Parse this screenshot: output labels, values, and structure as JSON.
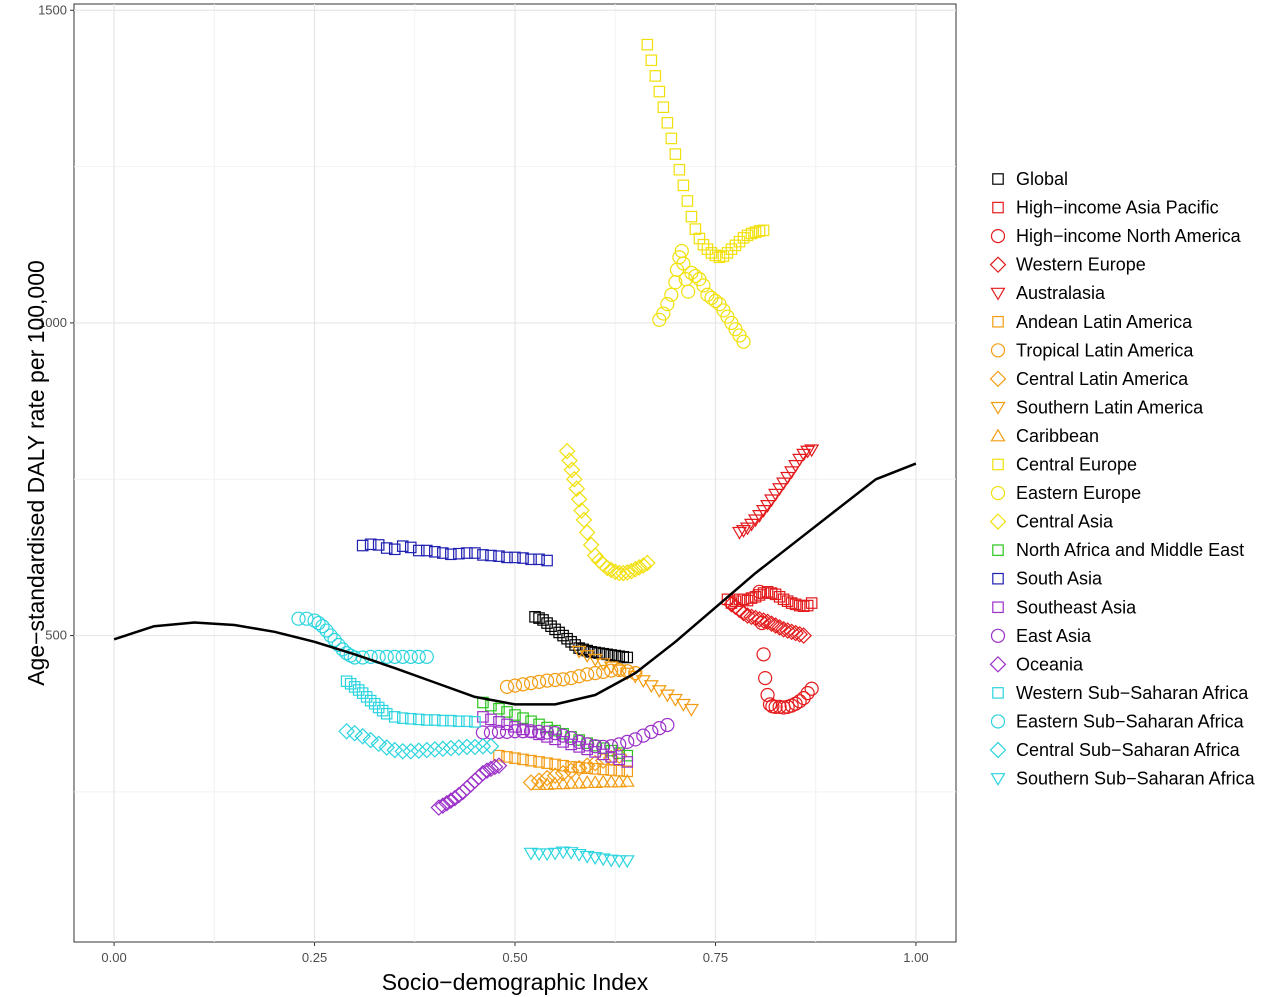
{
  "chart_data": {
    "type": "scatter",
    "title": "",
    "xlabel": "Socio−demographic Index",
    "ylabel": "Age−standardised DALY rate per 100,000",
    "xlim": [
      -0.05,
      1.05
    ],
    "ylim": [
      10,
      1510
    ],
    "x_ticks": [
      0,
      0.25,
      0.5,
      0.75,
      1
    ],
    "x_tick_labels": [
      "0.00",
      "0.25",
      "0.50",
      "0.75",
      "1.00"
    ],
    "y_ticks": [
      500,
      1000,
      1500
    ],
    "y_tick_labels": [
      "500",
      "1000",
      "1500"
    ],
    "y_minor_ticks": [
      250,
      750,
      1250
    ],
    "x_minor_ticks": [
      0.125,
      0.375,
      0.625,
      0.875
    ],
    "grid": true,
    "legend_position": "right",
    "trend_line": {
      "name": "expected",
      "color": "#000000",
      "points": [
        [
          0.0,
          494
        ],
        [
          0.05,
          515
        ],
        [
          0.1,
          521
        ],
        [
          0.15,
          517
        ],
        [
          0.2,
          506
        ],
        [
          0.25,
          490
        ],
        [
          0.3,
          470
        ],
        [
          0.35,
          448
        ],
        [
          0.4,
          425
        ],
        [
          0.45,
          402
        ],
        [
          0.5,
          390
        ],
        [
          0.55,
          390
        ],
        [
          0.6,
          405
        ],
        [
          0.65,
          440
        ],
        [
          0.7,
          490
        ],
        [
          0.75,
          545
        ],
        [
          0.8,
          600
        ],
        [
          0.85,
          650
        ],
        [
          0.9,
          700
        ],
        [
          0.95,
          750
        ],
        [
          1.0,
          775
        ]
      ]
    },
    "series": [
      {
        "name": "Global",
        "shape": "square",
        "color": "#000000",
        "x": [
          0.525,
          0.53,
          0.535,
          0.54,
          0.545,
          0.55,
          0.555,
          0.56,
          0.565,
          0.57,
          0.575,
          0.58,
          0.585,
          0.59,
          0.595,
          0.6,
          0.605,
          0.61,
          0.615,
          0.62,
          0.625,
          0.63,
          0.635,
          0.64
        ],
        "y": [
          530,
          528,
          525,
          520,
          515,
          510,
          505,
          500,
          495,
          490,
          485,
          480,
          478,
          476,
          474,
          473,
          472,
          471,
          470,
          469,
          468,
          467,
          466,
          465
        ]
      },
      {
        "name": "High−income Asia Pacific",
        "shape": "square",
        "color": "#E41A1C",
        "x": [
          0.765,
          0.77,
          0.775,
          0.78,
          0.785,
          0.79,
          0.795,
          0.8,
          0.805,
          0.81,
          0.815,
          0.82,
          0.825,
          0.83,
          0.835,
          0.84,
          0.845,
          0.85,
          0.855,
          0.86,
          0.865,
          0.87
        ],
        "y": [
          558,
          552,
          555,
          558,
          558,
          556,
          560,
          562,
          565,
          568,
          570,
          568,
          566,
          562,
          558,
          555,
          552,
          550,
          548,
          547,
          548,
          552
        ]
      },
      {
        "name": "High−income North America",
        "shape": "circle",
        "color": "#E41A1C",
        "x": [
          0.805,
          0.808,
          0.81,
          0.812,
          0.815,
          0.818,
          0.821,
          0.825,
          0.83,
          0.835,
          0.84,
          0.845,
          0.85,
          0.855,
          0.86,
          0.865,
          0.87
        ],
        "y": [
          570,
          520,
          470,
          432,
          405,
          390,
          387,
          386,
          386,
          385,
          386,
          388,
          391,
          395,
          400,
          408,
          415
        ]
      },
      {
        "name": "Western Europe",
        "shape": "diamond",
        "color": "#E41A1C",
        "x": [
          0.77,
          0.775,
          0.78,
          0.785,
          0.79,
          0.795,
          0.8,
          0.805,
          0.81,
          0.815,
          0.82,
          0.825,
          0.83,
          0.835,
          0.84,
          0.845,
          0.85,
          0.855,
          0.86
        ],
        "y": [
          550,
          546,
          541,
          536,
          532,
          530,
          528,
          526,
          524,
          522,
          519,
          516,
          513,
          510,
          508,
          506,
          504,
          502,
          500
        ]
      },
      {
        "name": "Australasia",
        "shape": "triangle-down",
        "color": "#E41A1C",
        "x": [
          0.78,
          0.785,
          0.79,
          0.795,
          0.8,
          0.805,
          0.81,
          0.815,
          0.82,
          0.825,
          0.83,
          0.835,
          0.84,
          0.845,
          0.85,
          0.855,
          0.86,
          0.865,
          0.87
        ],
        "y": [
          665,
          668,
          672,
          678,
          685,
          692,
          700,
          708,
          717,
          726,
          735,
          744,
          753,
          762,
          772,
          782,
          790,
          795,
          797
        ]
      },
      {
        "name": "Andean Latin America",
        "shape": "square",
        "color": "#F39C12",
        "x": [
          0.48,
          0.49,
          0.5,
          0.51,
          0.52,
          0.53,
          0.54,
          0.55,
          0.56,
          0.57,
          0.58,
          0.59,
          0.6,
          0.61,
          0.62,
          0.63,
          0.64
        ],
        "y": [
          308,
          306,
          304,
          302,
          300,
          298,
          296,
          294,
          292,
          290,
          289,
          288,
          287,
          286,
          285,
          284,
          283
        ]
      },
      {
        "name": "Tropical Latin America",
        "shape": "circle",
        "color": "#F39C12",
        "x": [
          0.49,
          0.5,
          0.51,
          0.52,
          0.53,
          0.54,
          0.55,
          0.56,
          0.57,
          0.58,
          0.59,
          0.6,
          0.61,
          0.62,
          0.63,
          0.64,
          0.65
        ],
        "y": [
          418,
          420,
          422,
          424,
          426,
          428,
          429,
          430,
          432,
          435,
          438,
          440,
          442,
          444,
          445,
          443,
          440
        ]
      },
      {
        "name": "Central Latin America",
        "shape": "diamond",
        "color": "#F39C12",
        "x": [
          0.52,
          0.53,
          0.54,
          0.55,
          0.56,
          0.57,
          0.58,
          0.59,
          0.6,
          0.61,
          0.62,
          0.63
        ],
        "y": [
          265,
          268,
          272,
          276,
          280,
          284,
          288,
          292,
          296,
          300,
          304,
          308
        ]
      },
      {
        "name": "Southern Latin America",
        "shape": "triangle-down",
        "color": "#F39C12",
        "x": [
          0.58,
          0.59,
          0.6,
          0.61,
          0.62,
          0.63,
          0.64,
          0.65,
          0.66,
          0.67,
          0.68,
          0.69,
          0.7,
          0.71,
          0.72
        ],
        "y": [
          475,
          468,
          462,
          455,
          450,
          445,
          440,
          435,
          428,
          420,
          412,
          405,
          398,
          390,
          382
        ]
      },
      {
        "name": "Caribbean",
        "shape": "triangle-up",
        "color": "#F39C12",
        "x": [
          0.53,
          0.54,
          0.55,
          0.56,
          0.57,
          0.58,
          0.59,
          0.6,
          0.61,
          0.62,
          0.63,
          0.64
        ],
        "y": [
          262,
          262,
          263,
          263,
          264,
          264,
          265,
          265,
          266,
          266,
          266,
          267
        ]
      },
      {
        "name": "Central Europe",
        "shape": "square",
        "color": "#F1E00A",
        "x": [
          0.665,
          0.67,
          0.675,
          0.68,
          0.685,
          0.69,
          0.695,
          0.7,
          0.705,
          0.71,
          0.715,
          0.72,
          0.725,
          0.73,
          0.735,
          0.74,
          0.745,
          0.75,
          0.755,
          0.76,
          0.765,
          0.77,
          0.775,
          0.78,
          0.785,
          0.79,
          0.795,
          0.8,
          0.805,
          0.81
        ],
        "y": [
          1445,
          1420,
          1395,
          1370,
          1345,
          1320,
          1295,
          1270,
          1245,
          1220,
          1195,
          1170,
          1150,
          1135,
          1125,
          1118,
          1112,
          1108,
          1105,
          1107,
          1112,
          1118,
          1124,
          1130,
          1136,
          1140,
          1143,
          1145,
          1147,
          1148
        ]
      },
      {
        "name": "Eastern Europe",
        "shape": "circle",
        "color": "#F1E00A",
        "x": [
          0.68,
          0.685,
          0.69,
          0.695,
          0.7,
          0.702,
          0.705,
          0.708,
          0.71,
          0.713,
          0.716,
          0.72,
          0.725,
          0.73,
          0.735,
          0.74,
          0.745,
          0.75,
          0.755,
          0.76,
          0.765,
          0.77,
          0.775,
          0.78,
          0.785
        ],
        "y": [
          1005,
          1015,
          1030,
          1045,
          1065,
          1085,
          1105,
          1115,
          1095,
          1070,
          1050,
          1080,
          1075,
          1070,
          1060,
          1045,
          1040,
          1035,
          1030,
          1020,
          1010,
          1000,
          990,
          980,
          970
        ]
      },
      {
        "name": "Central Asia",
        "shape": "diamond",
        "color": "#F1E00A",
        "x": [
          0.565,
          0.568,
          0.571,
          0.574,
          0.577,
          0.58,
          0.583,
          0.586,
          0.59,
          0.595,
          0.6,
          0.605,
          0.61,
          0.615,
          0.62,
          0.625,
          0.63,
          0.635,
          0.64,
          0.645,
          0.65,
          0.655,
          0.66,
          0.665
        ],
        "y": [
          795,
          780,
          765,
          750,
          735,
          718,
          700,
          685,
          665,
          645,
          628,
          620,
          614,
          608,
          605,
          602,
          600,
          600,
          601,
          603,
          606,
          609,
          612,
          616
        ]
      },
      {
        "name": "North Africa and Middle East",
        "shape": "square",
        "color": "#2BC51E",
        "x": [
          0.46,
          0.47,
          0.48,
          0.49,
          0.5,
          0.51,
          0.52,
          0.53,
          0.54,
          0.55,
          0.56,
          0.57,
          0.58,
          0.59,
          0.6,
          0.61,
          0.62,
          0.63,
          0.64
        ],
        "y": [
          393,
          388,
          383,
          378,
          373,
          368,
          363,
          358,
          353,
          348,
          343,
          338,
          333,
          328,
          324,
          320,
          316,
          312,
          308
        ]
      },
      {
        "name": "South Asia",
        "shape": "square",
        "color": "#1F1FB2",
        "x": [
          0.31,
          0.32,
          0.33,
          0.34,
          0.35,
          0.36,
          0.37,
          0.38,
          0.39,
          0.4,
          0.41,
          0.42,
          0.43,
          0.44,
          0.45,
          0.46,
          0.47,
          0.48,
          0.49,
          0.5,
          0.51,
          0.52,
          0.53,
          0.54
        ],
        "y": [
          644,
          646,
          645,
          640,
          638,
          643,
          641,
          636,
          636,
          634,
          632,
          630,
          631,
          632,
          632,
          629,
          628,
          627,
          625,
          625,
          624,
          622,
          622,
          620
        ]
      },
      {
        "name": "Southeast Asia",
        "shape": "square",
        "color": "#9B30C8",
        "x": [
          0.46,
          0.47,
          0.48,
          0.49,
          0.5,
          0.51,
          0.52,
          0.53,
          0.54,
          0.55,
          0.56,
          0.57,
          0.58,
          0.59,
          0.6,
          0.61,
          0.62,
          0.63,
          0.64
        ],
        "y": [
          370,
          366,
          362,
          358,
          354,
          350,
          346,
          342,
          338,
          334,
          330,
          326,
          322,
          318,
          314,
          310,
          306,
          302,
          298
        ]
      },
      {
        "name": "East Asia",
        "shape": "circle",
        "color": "#9B30C8",
        "x": [
          0.46,
          0.47,
          0.48,
          0.49,
          0.5,
          0.51,
          0.52,
          0.53,
          0.54,
          0.55,
          0.56,
          0.57,
          0.58,
          0.59,
          0.6,
          0.61,
          0.62,
          0.63,
          0.64,
          0.65,
          0.66,
          0.67,
          0.68,
          0.69
        ],
        "y": [
          345,
          345,
          346,
          346,
          347,
          347,
          347,
          346,
          345,
          344,
          340,
          336,
          330,
          326,
          323,
          322,
          323,
          326,
          330,
          334,
          340,
          346,
          352,
          357
        ]
      },
      {
        "name": "Oceania",
        "shape": "diamond",
        "color": "#9B30C8",
        "x": [
          0.405,
          0.41,
          0.415,
          0.42,
          0.425,
          0.43,
          0.435,
          0.44,
          0.445,
          0.45,
          0.455,
          0.46,
          0.465,
          0.47,
          0.475,
          0.48
        ],
        "y": [
          225,
          228,
          232,
          236,
          240,
          245,
          250,
          256,
          262,
          268,
          274,
          280,
          284,
          287,
          290,
          292
        ]
      },
      {
        "name": "Western Sub−Saharan Africa",
        "shape": "square",
        "color": "#2BD4DF",
        "x": [
          0.29,
          0.295,
          0.3,
          0.305,
          0.31,
          0.315,
          0.32,
          0.325,
          0.33,
          0.335,
          0.34,
          0.35,
          0.36,
          0.37,
          0.38,
          0.39,
          0.4,
          0.41,
          0.42,
          0.43,
          0.44,
          0.45
        ],
        "y": [
          427,
          423,
          418,
          413,
          408,
          402,
          396,
          391,
          385,
          380,
          375,
          370,
          368,
          367,
          366,
          365,
          365,
          364,
          364,
          363,
          363,
          362
        ]
      },
      {
        "name": "Eastern Sub−Saharan Africa",
        "shape": "circle",
        "color": "#2BD4DF",
        "x": [
          0.23,
          0.24,
          0.25,
          0.255,
          0.26,
          0.265,
          0.27,
          0.275,
          0.28,
          0.285,
          0.29,
          0.295,
          0.3,
          0.31,
          0.32,
          0.33,
          0.34,
          0.35,
          0.36,
          0.37,
          0.38,
          0.39
        ],
        "y": [
          527,
          527,
          524,
          520,
          515,
          508,
          500,
          493,
          485,
          478,
          472,
          468,
          465,
          465,
          466,
          466,
          466,
          466,
          466,
          466,
          466,
          466
        ]
      },
      {
        "name": "Central Sub−Saharan Africa",
        "shape": "diamond",
        "color": "#2BD4DF",
        "x": [
          0.29,
          0.3,
          0.31,
          0.32,
          0.33,
          0.34,
          0.35,
          0.36,
          0.37,
          0.38,
          0.39,
          0.4,
          0.41,
          0.42,
          0.43,
          0.44,
          0.45,
          0.46,
          0.47
        ],
        "y": [
          347,
          344,
          339,
          333,
          327,
          321,
          317,
          315,
          315,
          316,
          317,
          318,
          319,
          320,
          321,
          322,
          322,
          323,
          323
        ]
      },
      {
        "name": "Southern Sub−Saharan Africa",
        "shape": "triangle-down",
        "color": "#2BD4DF",
        "x": [
          0.52,
          0.53,
          0.54,
          0.55,
          0.56,
          0.57,
          0.58,
          0.59,
          0.6,
          0.61,
          0.62,
          0.63,
          0.64
        ],
        "y": [
          152,
          151,
          151,
          152,
          154,
          153,
          150,
          147,
          145,
          143,
          141,
          140,
          140
        ]
      }
    ]
  }
}
